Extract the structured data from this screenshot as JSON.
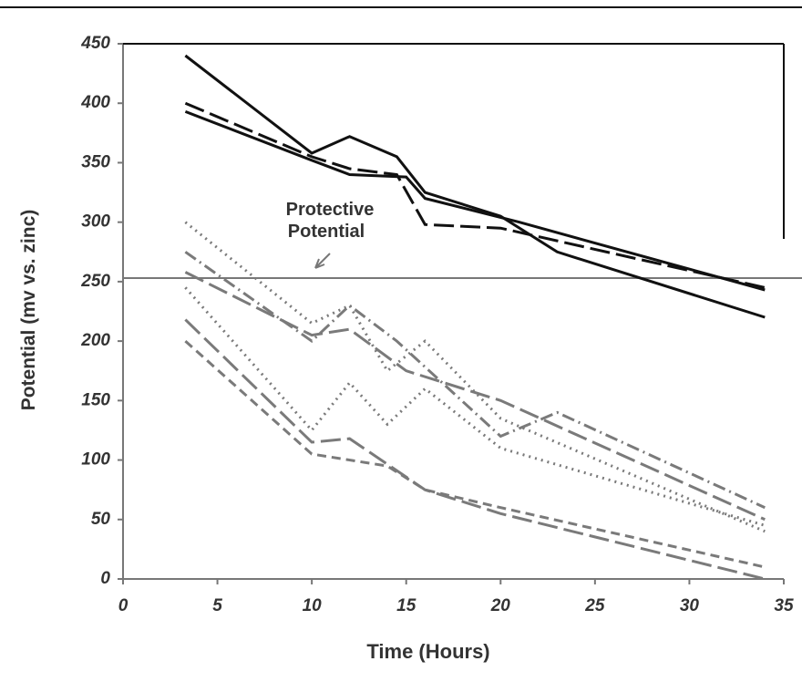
{
  "chart_data": {
    "type": "line",
    "xlabel": "Time (Hours)",
    "ylabel": "Potential (mv vs. zinc)",
    "annotation_lines": [
      "Protective",
      "Potential"
    ],
    "reference_line": 253,
    "xlim": [
      0,
      35
    ],
    "xticks": [
      0,
      5,
      10,
      15,
      20,
      25,
      30,
      35
    ],
    "ylim": [
      0,
      450
    ],
    "yticks": [
      0,
      50,
      100,
      150,
      200,
      250,
      300,
      350,
      400,
      450
    ],
    "series": [
      {
        "color": "#111111",
        "dash": "solid",
        "x": [
          3.3,
          10,
          12,
          14.5,
          16,
          20,
          23,
          34
        ],
        "values": [
          440,
          358,
          372,
          355,
          325,
          305,
          275,
          220
        ]
      },
      {
        "color": "#111111",
        "dash": "longdash",
        "x": [
          3.3,
          10,
          12,
          14.5,
          16,
          20,
          34
        ],
        "values": [
          400,
          355,
          345,
          340,
          298,
          295,
          245
        ]
      },
      {
        "color": "#111111",
        "dash": "solid",
        "x": [
          3.3,
          10,
          12,
          15,
          16,
          21,
          34
        ],
        "values": [
          393,
          352,
          340,
          338,
          320,
          300,
          243
        ]
      },
      {
        "color": "#7a7a7a",
        "dash": "dotted",
        "x": [
          3.3,
          10,
          12,
          14,
          16,
          20,
          34
        ],
        "values": [
          300,
          215,
          230,
          175,
          200,
          135,
          40
        ]
      },
      {
        "color": "#7a7a7a",
        "dash": "dashdot",
        "x": [
          3.3,
          10,
          12,
          14.5,
          20,
          23,
          34
        ],
        "values": [
          275,
          200,
          230,
          200,
          120,
          140,
          60
        ]
      },
      {
        "color": "#7a7a7a",
        "dash": "longdash",
        "x": [
          3.3,
          10,
          12,
          15,
          20,
          34
        ],
        "values": [
          258,
          205,
          210,
          175,
          150,
          50
        ]
      },
      {
        "color": "#7a7a7a",
        "dash": "dotted",
        "x": [
          3.3,
          10,
          12,
          14,
          16,
          20,
          34
        ],
        "values": [
          245,
          125,
          165,
          130,
          160,
          110,
          45
        ]
      },
      {
        "color": "#7a7a7a",
        "dash": "longdash",
        "x": [
          3.3,
          10,
          12,
          16,
          20,
          34
        ],
        "values": [
          218,
          115,
          118,
          75,
          55,
          0
        ]
      },
      {
        "color": "#7a7a7a",
        "dash": "dashed",
        "x": [
          3.3,
          10,
          14,
          16,
          20,
          34
        ],
        "values": [
          200,
          105,
          95,
          75,
          60,
          10
        ]
      }
    ]
  }
}
